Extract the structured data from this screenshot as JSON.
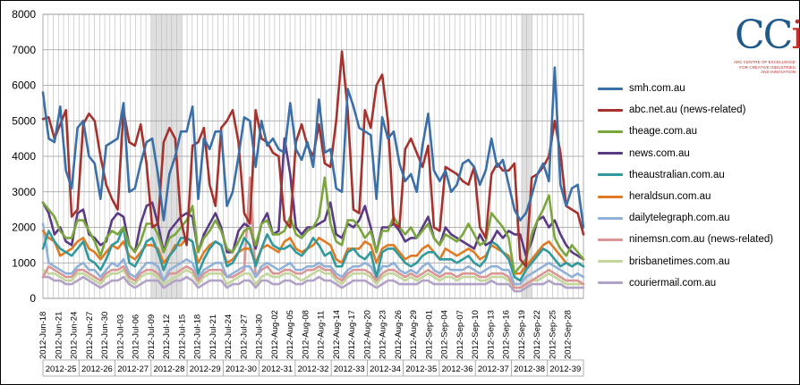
{
  "chart_data": {
    "type": "line",
    "title": "",
    "xlabel": "",
    "ylabel": "",
    "ylim": [
      0,
      8000
    ],
    "yticks": [
      0,
      1000,
      2000,
      3000,
      4000,
      5000,
      6000,
      7000,
      8000
    ],
    "grid": true,
    "legend_position": "right",
    "x_date_start": "2012-06-18",
    "x_date_end": "2012-09-30",
    "x_tick_labels": [
      "2012-Jun-18",
      "2012-Jun-21",
      "2012-Jun-24",
      "2012-Jun-27",
      "2012-Jun-30",
      "2012-Jul-03",
      "2012-Jul-06",
      "2012-Jul-09",
      "2012-Jul-12",
      "2012-Jul-15",
      "2012-Jul-18",
      "2012-Jul-21",
      "2012-Jul-24",
      "2012-Jul-27",
      "2012-Jul-30",
      "2012-Aug-02",
      "2012-Aug-05",
      "2012-Aug-08",
      "2012-Aug-11",
      "2012-Aug-14",
      "2012-Aug-17",
      "2012-Aug-20",
      "2012-Aug-23",
      "2012-Aug-26",
      "2012-Aug-29",
      "2012-Sep-01",
      "2012-Sep-04",
      "2012-Sep-07",
      "2012-Sep-10",
      "2012-Sep-13",
      "2012-Sep-16",
      "2012-Sep-19",
      "2012-Sep-22",
      "2012-Sep-25",
      "2012-Sep-28"
    ],
    "week_labels": [
      "2012-25",
      "2012-26",
      "2012-27",
      "2012-28",
      "2012-29",
      "2012-30",
      "2012-31",
      "2012-32",
      "2012-33",
      "2012-34",
      "2012-35",
      "2012-36",
      "2012-37",
      "2012-38",
      "2012-39"
    ],
    "shaded_ranges": [
      [
        "2012-07-09",
        "2012-07-14"
      ],
      [
        "2012-09-19",
        "2012-09-20"
      ]
    ],
    "series": [
      {
        "name": "smh.com.au",
        "color": "#3a6fa8",
        "values": [
          5800,
          4500,
          4400,
          5400,
          3600,
          3100,
          4800,
          5000,
          4000,
          3800,
          2800,
          4300,
          4400,
          4500,
          5500,
          3000,
          3100,
          3800,
          4400,
          4500,
          3500,
          2200,
          3500,
          4000,
          4700,
          4700,
          5400,
          2800,
          4500,
          4200,
          4700,
          4700,
          2600,
          3000,
          4000,
          5100,
          5000,
          3700,
          5000,
          4300,
          4500,
          4200,
          4100,
          5500,
          4200,
          3900,
          4400,
          3700,
          5600,
          4100,
          4200,
          3100,
          3000,
          5900,
          5400,
          4800,
          4700,
          4600,
          2800,
          5100,
          4500,
          4700,
          3800,
          3300,
          3500,
          3000,
          4300,
          5200,
          3600,
          3300,
          3600,
          3000,
          3200,
          3800,
          3900,
          3700,
          3200,
          3600,
          4500,
          3700,
          3900,
          3200,
          2500,
          2200,
          2400,
          2900,
          3500,
          3800,
          3300,
          6500,
          3200,
          2600,
          3100,
          3200,
          2000
        ]
      },
      {
        "name": "abc.net.au (news-related)",
        "color": "#a5322d",
        "values": [
          5050,
          5100,
          4500,
          4900,
          5300,
          2300,
          2500,
          4900,
          5200,
          5000,
          4000,
          3200,
          2800,
          2500,
          5300,
          4400,
          4300,
          4900,
          3800,
          2000,
          2100,
          4400,
          4800,
          4500,
          2200,
          1500,
          4300,
          4400,
          4800,
          3200,
          2600,
          4800,
          5000,
          5300,
          4400,
          2400,
          2100,
          5300,
          4500,
          4400,
          4100,
          4000,
          2200,
          2000,
          4400,
          4900,
          4300,
          4000,
          4900,
          3800,
          3700,
          5000,
          6950,
          5300,
          2500,
          2400,
          5300,
          4800,
          6000,
          6300,
          5000,
          2100,
          2000,
          4200,
          4500,
          4100,
          3700,
          4300,
          2000,
          1900,
          3700,
          3600,
          3500,
          3300,
          3200,
          3700,
          2000,
          1700,
          3500,
          3800,
          3600,
          3600,
          3800,
          1100,
          900,
          3400,
          3500,
          3700,
          4000,
          5000,
          4100,
          2600,
          2500,
          2400,
          1800
        ]
      },
      {
        "name": "theage.com.au",
        "color": "#7aa73c",
        "values": [
          2700,
          2500,
          2300,
          1900,
          1700,
          1700,
          2200,
          2200,
          1900,
          1600,
          1200,
          1700,
          1900,
          1800,
          2000,
          1500,
          1300,
          1600,
          2100,
          2100,
          1800,
          1300,
          1700,
          1800,
          2000,
          2200,
          2600,
          1300,
          1700,
          1900,
          2200,
          1900,
          1400,
          1300,
          1600,
          1900,
          2000,
          1500,
          2100,
          2200,
          1800,
          1800,
          1900,
          2300,
          1800,
          1700,
          1900,
          2000,
          2300,
          3400,
          2100,
          1600,
          1500,
          2200,
          2200,
          2000,
          1700,
          1900,
          1300,
          1900,
          1900,
          2300,
          2000,
          1800,
          2000,
          1700,
          1900,
          2100,
          1700,
          1500,
          1800,
          1700,
          1600,
          1800,
          2100,
          1800,
          1500,
          1600,
          2400,
          2200,
          2000,
          1700,
          700,
          900,
          1100,
          1800,
          2200,
          2500,
          2900,
          1700,
          1400,
          1200,
          1500,
          1300,
          1100
        ]
      },
      {
        "name": "news.com.au",
        "color": "#5b3a85",
        "values": [
          2700,
          2400,
          1800,
          2000,
          1600,
          1500,
          2400,
          2500,
          1800,
          1700,
          1500,
          1600,
          2200,
          2400,
          2300,
          1500,
          1300,
          2100,
          2600,
          2700,
          2100,
          1300,
          1900,
          2100,
          2300,
          2400,
          2300,
          1300,
          1800,
          2100,
          2400,
          2000,
          1300,
          1300,
          1900,
          2100,
          2000,
          1400,
          2100,
          2400,
          1800,
          1900,
          4500,
          3500,
          2000,
          1800,
          2000,
          2000,
          2100,
          2200,
          2700,
          1800,
          1700,
          2100,
          2000,
          2200,
          2600,
          2000,
          1300,
          2000,
          2000,
          2100,
          1900,
          1600,
          1700,
          1700,
          2000,
          2300,
          1700,
          1500,
          2000,
          1800,
          1700,
          1600,
          1500,
          1400,
          1800,
          1500,
          1600,
          1900,
          1700,
          1900,
          1800,
          1800,
          1200,
          1600,
          2200,
          2300,
          2000,
          2200,
          1800,
          1500,
          1300,
          1200,
          1100
        ]
      },
      {
        "name": "theaustralian.com.au",
        "color": "#2f9a9d",
        "values": [
          1400,
          1900,
          1600,
          1400,
          1300,
          1200,
          1400,
          1600,
          1100,
          1000,
          800,
          1100,
          1500,
          1600,
          2000,
          1000,
          900,
          1200,
          1600,
          1700,
          1300,
          800,
          1200,
          1400,
          1700,
          1700,
          1600,
          700,
          1100,
          1400,
          1600,
          1500,
          900,
          1000,
          1300,
          1700,
          1500,
          900,
          1400,
          1800,
          1500,
          1400,
          1400,
          1500,
          1300,
          1200,
          1400,
          1700,
          1500,
          1200,
          1300,
          900,
          900,
          1300,
          1400,
          1200,
          1100,
          1300,
          600,
          1300,
          1400,
          1400,
          1200,
          1000,
          900,
          1000,
          1200,
          1300,
          1300,
          1100,
          1100,
          1100,
          1000,
          1100,
          1200,
          1000,
          900,
          1100,
          1600,
          1500,
          1300,
          1100,
          600,
          500,
          800,
          1000,
          1200,
          1400,
          1300,
          1100,
          900,
          1000,
          900,
          1000,
          900
        ]
      },
      {
        "name": "heraldsun.com.au",
        "color": "#e07b24",
        "values": [
          1900,
          1700,
          1600,
          1200,
          1300,
          1400,
          1600,
          1700,
          1400,
          1300,
          1100,
          1300,
          1500,
          1400,
          1600,
          1200,
          1100,
          1300,
          1500,
          1500,
          1400,
          1000,
          1200,
          1500,
          1500,
          1700,
          1600,
          1000,
          1300,
          1500,
          1600,
          1500,
          1000,
          1100,
          1300,
          1400,
          1400,
          1000,
          1400,
          1500,
          1400,
          1300,
          1600,
          1700,
          1400,
          1300,
          1400,
          1500,
          1700,
          1600,
          1500,
          1100,
          1000,
          1400,
          1400,
          1400,
          1600,
          1500,
          1000,
          1400,
          1500,
          1500,
          1300,
          1100,
          1200,
          1200,
          1400,
          1500,
          1300,
          1100,
          1400,
          1300,
          1200,
          1300,
          1400,
          1300,
          1100,
          1200,
          1500,
          1400,
          1300,
          1200,
          700,
          700,
          900,
          1100,
          1300,
          1500,
          1600,
          1400,
          1200,
          1000,
          900,
          1000,
          900
        ]
      },
      {
        "name": "dailytelegraph.com.au",
        "color": "#8fb1d9",
        "values": [
          2100,
          1000,
          900,
          800,
          700,
          700,
          900,
          1000,
          800,
          800,
          600,
          800,
          1000,
          900,
          1100,
          700,
          600,
          800,
          1000,
          1000,
          900,
          500,
          800,
          900,
          1000,
          1100,
          1000,
          600,
          800,
          900,
          1000,
          1000,
          600,
          700,
          800,
          900,
          900,
          600,
          900,
          1000,
          900,
          800,
          900,
          1000,
          800,
          800,
          900,
          900,
          1000,
          900,
          900,
          700,
          600,
          800,
          900,
          900,
          1000,
          900,
          600,
          900,
          900,
          1000,
          800,
          700,
          800,
          700,
          900,
          1000,
          800,
          700,
          900,
          800,
          800,
          800,
          900,
          800,
          700,
          800,
          900,
          900,
          800,
          800,
          400,
          400,
          600,
          700,
          800,
          900,
          1000,
          900,
          800,
          700,
          600,
          700,
          600
        ]
      },
      {
        "name": "ninemsn.com.au (news-related)",
        "color": "#d99694",
        "values": [
          600,
          900,
          800,
          700,
          600,
          600,
          800,
          800,
          700,
          600,
          500,
          700,
          800,
          800,
          900,
          600,
          500,
          700,
          800,
          800,
          700,
          500,
          700,
          700,
          800,
          900,
          800,
          500,
          700,
          800,
          800,
          800,
          600,
          600,
          700,
          800,
          3400,
          600,
          800,
          900,
          700,
          700,
          800,
          800,
          700,
          700,
          800,
          800,
          900,
          800,
          800,
          600,
          500,
          700,
          800,
          800,
          800,
          700,
          500,
          700,
          800,
          800,
          700,
          600,
          700,
          600,
          700,
          800,
          700,
          600,
          700,
          700,
          600,
          700,
          700,
          700,
          600,
          600,
          700,
          700,
          700,
          600,
          300,
          300,
          400,
          500,
          600,
          700,
          800,
          700,
          600,
          500,
          500,
          500,
          400
        ]
      },
      {
        "name": "brisbanetimes.com.au",
        "color": "#c3d69b",
        "values": [
          800,
          700,
          700,
          600,
          500,
          500,
          700,
          700,
          600,
          500,
          400,
          600,
          700,
          700,
          800,
          500,
          400,
          600,
          700,
          700,
          600,
          400,
          500,
          600,
          700,
          800,
          700,
          400,
          600,
          700,
          700,
          700,
          400,
          500,
          600,
          700,
          700,
          400,
          600,
          700,
          600,
          600,
          700,
          700,
          600,
          500,
          600,
          700,
          800,
          700,
          700,
          500,
          400,
          600,
          700,
          700,
          700,
          600,
          400,
          600,
          700,
          700,
          600,
          500,
          600,
          500,
          600,
          700,
          600,
          500,
          600,
          600,
          500,
          600,
          600,
          600,
          500,
          500,
          600,
          600,
          600,
          500,
          300,
          300,
          400,
          500,
          500,
          600,
          700,
          600,
          500,
          400,
          400,
          400,
          400
        ]
      },
      {
        "name": "couriermail.com.au",
        "color": "#b3a2c7",
        "values": [
          600,
          600,
          500,
          500,
          400,
          400,
          500,
          600,
          500,
          400,
          300,
          400,
          500,
          500,
          600,
          400,
          300,
          400,
          500,
          500,
          500,
          300,
          400,
          500,
          500,
          600,
          500,
          300,
          400,
          500,
          500,
          500,
          300,
          400,
          400,
          500,
          500,
          300,
          500,
          500,
          400,
          400,
          500,
          500,
          400,
          400,
          500,
          500,
          600,
          500,
          500,
          400,
          300,
          400,
          500,
          500,
          500,
          400,
          300,
          400,
          500,
          500,
          400,
          400,
          400,
          400,
          500,
          500,
          400,
          400,
          400,
          400,
          400,
          400,
          400,
          400,
          400,
          400,
          500,
          400,
          400,
          400,
          200,
          200,
          300,
          400,
          400,
          400,
          500,
          400,
          400,
          300,
          300,
          300,
          300
        ]
      }
    ]
  },
  "logo": {
    "mark_c": "CC",
    "mark_i": "i",
    "caption": "ARC CENTRE OF EXCELLENCE\nFOR CREATIVE INDUSTRIES\nAND INNOVATION"
  }
}
